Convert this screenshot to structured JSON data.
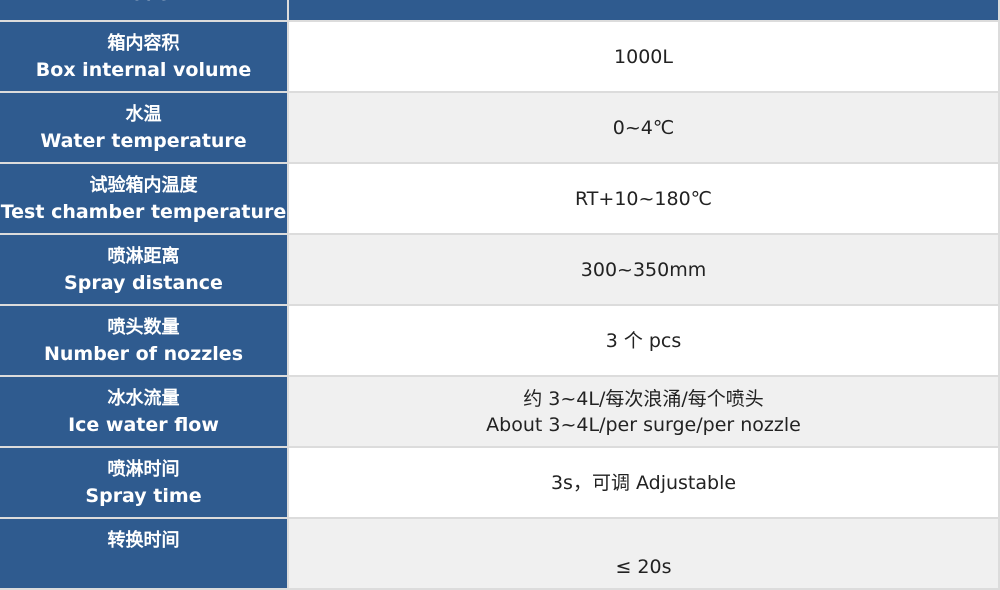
{
  "colors": {
    "label_bg": "#2f5b8f",
    "row_alt": "#f0f0f0"
  },
  "header": {
    "label_en": "model"
  },
  "rows": [
    {
      "zh": "箱内容积",
      "en": "Box internal volume",
      "value": "1000L"
    },
    {
      "zh": "水温",
      "en": "Water temperature",
      "value": "0~4℃"
    },
    {
      "zh": "试验箱内温度",
      "en": "Test chamber temperature",
      "value": "RT+10~180℃"
    },
    {
      "zh": "喷淋距离",
      "en": "Spray distance",
      "value": "300~350mm"
    },
    {
      "zh": "喷头数量",
      "en": "Number of nozzles",
      "value": "3 个  pcs"
    },
    {
      "zh": "冰水流量",
      "en": "Ice water flow",
      "value": "约 3~4L/每次浪涌/每个喷头",
      "value2": "About 3~4L/per surge/per nozzle"
    },
    {
      "zh": "喷淋时间",
      "en": "Spray time",
      "value": "3s，可调  Adjustable"
    },
    {
      "zh": "转换时间",
      "en": "",
      "value": "≤ 20s"
    }
  ]
}
